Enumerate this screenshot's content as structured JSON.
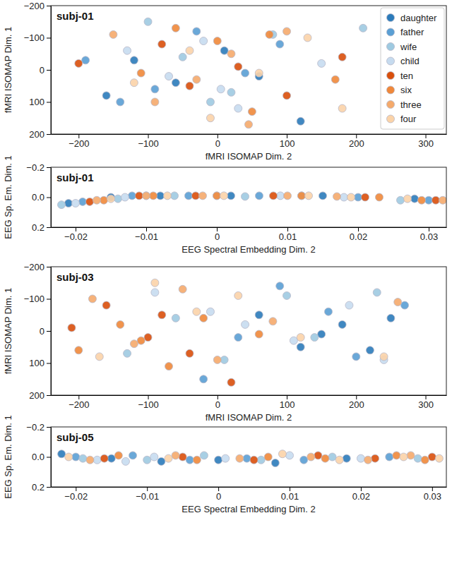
{
  "chart_data": [
    {
      "type": "scatter",
      "title": "subj-01",
      "x_label": "fMRI ISOMAP Dim. 2",
      "y_label": "fMRI ISOMAP Dim. 1",
      "xlim": [
        -240,
        330
      ],
      "ylim": [
        -200,
        200
      ],
      "xticks": [
        {
          "value": -200,
          "label": "−200"
        },
        {
          "value": -100,
          "label": "−100"
        },
        0,
        100,
        200,
        300
      ],
      "yticks": [
        {
          "value": -200,
          "label": "−200"
        },
        {
          "value": -100,
          "label": "−100"
        },
        0,
        100,
        200
      ],
      "legend": "upper right",
      "marker": "circle",
      "series": [
        {
          "name": "daughter",
          "color": "#2b7bba",
          "x": [
            -160,
            -120,
            -60,
            10,
            60,
            120
          ],
          "values": [
            80,
            -30,
            40,
            -60,
            20,
            160
          ]
        },
        {
          "name": "father",
          "color": "#5a9fd4",
          "x": [
            -190,
            -90,
            -30,
            40,
            90,
            -140
          ],
          "values": [
            -30,
            60,
            -120,
            10,
            -80,
            100
          ]
        },
        {
          "name": "wife",
          "color": "#9ecae1",
          "x": [
            -100,
            -50,
            20,
            80,
            -10,
            210
          ],
          "values": [
            -150,
            -40,
            70,
            -110,
            100,
            -130
          ]
        },
        {
          "name": "child",
          "color": "#c6dbef",
          "x": [
            -70,
            -20,
            30,
            -130,
            150,
            5
          ],
          "values": [
            20,
            -90,
            120,
            -60,
            -20,
            60
          ]
        },
        {
          "name": "ten",
          "color": "#d94f0b",
          "x": [
            -200,
            -80,
            -40,
            30,
            180,
            100
          ],
          "values": [
            -20,
            -80,
            50,
            -10,
            -40,
            80
          ]
        },
        {
          "name": "six",
          "color": "#f0883a",
          "x": [
            -110,
            -60,
            0,
            50,
            170,
            75
          ],
          "values": [
            10,
            -130,
            -90,
            130,
            30,
            -110
          ]
        },
        {
          "name": "three",
          "color": "#f5aa6b",
          "x": [
            -150,
            -30,
            20,
            100,
            45,
            -90
          ],
          "values": [
            -110,
            30,
            -50,
            -120,
            170,
            100
          ]
        },
        {
          "name": "four",
          "color": "#fbd3a8",
          "x": [
            -120,
            -40,
            60,
            130,
            180,
            -10
          ],
          "values": [
            40,
            -60,
            10,
            -100,
            120,
            150
          ]
        }
      ]
    },
    {
      "type": "scatter",
      "title": "subj-01",
      "x_label": "EEG Spectral Embedding Dim. 2",
      "y_label": "EEG Sp. Em. Dim. 1",
      "xlim": [
        -0.0235,
        0.0325
      ],
      "ylim": [
        -0.2,
        0.2
      ],
      "xticks": [
        {
          "value": -0.02,
          "label": "−0.02"
        },
        {
          "value": -0.01,
          "label": "−0.01"
        },
        0,
        0.01,
        0.02,
        0.03
      ],
      "yticks": [
        {
          "value": -0.2,
          "label": "−0.2"
        },
        {
          "value": 0,
          "label": "0.0"
        },
        0.2
      ],
      "marker": "circle",
      "series": [
        {
          "color": "#2b7bba",
          "x": [
            -0.021,
            -0.015,
            -0.008,
            0.002,
            0.015,
            0.028
          ],
          "values": [
            0.04,
            0.0,
            -0.01,
            -0.01,
            -0.01,
            0.01
          ]
        },
        {
          "color": "#5a9fd4",
          "x": [
            -0.019,
            -0.012,
            -0.004,
            0.006,
            0.02,
            0.03
          ],
          "values": [
            0.03,
            -0.01,
            -0.01,
            -0.01,
            0.0,
            0.02
          ]
        },
        {
          "color": "#9ecae1",
          "x": [
            -0.022,
            -0.014,
            -0.006,
            0.004,
            0.012,
            0.026
          ],
          "values": [
            0.05,
            0.01,
            -0.01,
            -0.005,
            -0.01,
            0.02
          ]
        },
        {
          "color": "#c6dbef",
          "x": [
            -0.02,
            -0.013,
            -0.01,
            0.0,
            0.009,
            0.018
          ],
          "values": [
            0.04,
            0.0,
            -0.01,
            -0.01,
            -0.01,
            0.0
          ]
        },
        {
          "color": "#d94f0b",
          "x": [
            -0.018,
            -0.011,
            -0.003,
            0.008,
            0.021,
            0.031
          ],
          "values": [
            0.03,
            -0.01,
            -0.01,
            -0.01,
            0.0,
            0.02
          ]
        },
        {
          "color": "#f0883a",
          "x": [
            -0.016,
            -0.009,
            0.0,
            0.012,
            0.023,
            0.029
          ],
          "values": [
            0.02,
            -0.01,
            -0.01,
            -0.01,
            0.0,
            0.02
          ]
        },
        {
          "color": "#f5aa6b",
          "x": [
            -0.017,
            -0.01,
            -0.002,
            0.01,
            0.017,
            0.032
          ],
          "values": [
            0.02,
            -0.01,
            -0.01,
            -0.01,
            -0.005,
            0.02
          ]
        },
        {
          "color": "#fbd3a8",
          "x": [
            -0.015,
            -0.007,
            0.001,
            0.013,
            0.019,
            0.027
          ],
          "values": [
            0.01,
            -0.01,
            -0.01,
            -0.01,
            0.0,
            0.01
          ]
        }
      ]
    },
    {
      "type": "scatter",
      "title": "subj-03",
      "x_label": "fMRI ISOMAP Dim. 2",
      "y_label": "fMRI ISOMAP Dim. 1",
      "xlim": [
        -240,
        330
      ],
      "ylim": [
        -200,
        200
      ],
      "xticks": [
        {
          "value": -200,
          "label": "−200"
        },
        {
          "value": -100,
          "label": "−100"
        },
        0,
        100,
        200,
        300
      ],
      "yticks": [
        {
          "value": -200,
          "label": "−200"
        },
        {
          "value": -100,
          "label": "−100"
        },
        0,
        100,
        200
      ],
      "marker": "circle",
      "series": [
        {
          "color": "#2b7bba",
          "x": [
            60,
            120,
            180,
            220,
            250,
            150
          ],
          "values": [
            -50,
            50,
            -20,
            60,
            -40,
            10
          ]
        },
        {
          "color": "#5a9fd4",
          "x": [
            30,
            90,
            160,
            200,
            270,
            -20
          ],
          "values": [
            20,
            -140,
            -60,
            80,
            -80,
            150
          ]
        },
        {
          "color": "#9ecae1",
          "x": [
            -60,
            10,
            100,
            140,
            230,
            -130
          ],
          "values": [
            -40,
            90,
            -110,
            20,
            -120,
            70
          ]
        },
        {
          "color": "#c6dbef",
          "x": [
            -90,
            40,
            110,
            190,
            240,
            -10
          ],
          "values": [
            -120,
            -20,
            30,
            -80,
            90,
            -60
          ]
        },
        {
          "color": "#d94f0b",
          "x": [
            -210,
            -160,
            -100,
            -40,
            20,
            -80
          ],
          "values": [
            -10,
            -80,
            20,
            70,
            160,
            -50
          ]
        },
        {
          "color": "#f0883a",
          "x": [
            -200,
            -140,
            -70,
            -20,
            60,
            -110
          ],
          "values": [
            60,
            -20,
            110,
            -40,
            10,
            30
          ]
        },
        {
          "color": "#f5aa6b",
          "x": [
            -180,
            -120,
            -50,
            0,
            80,
            260
          ],
          "values": [
            -100,
            40,
            -130,
            90,
            -30,
            -90
          ]
        },
        {
          "color": "#fbd3a8",
          "x": [
            -170,
            -90,
            -30,
            30,
            120,
            240
          ],
          "values": [
            80,
            -150,
            -60,
            -110,
            20,
            80
          ]
        }
      ]
    },
    {
      "type": "scatter",
      "title": "subj-05",
      "x_label": "EEG Spectral Embedding Dim. 2",
      "y_label": "EEG Sp. Em. Dim. 1",
      "xlim": [
        -0.0235,
        0.032
      ],
      "ylim": [
        -0.2,
        0.2
      ],
      "xticks": [
        {
          "value": -0.02,
          "label": "−0.02"
        },
        {
          "value": -0.01,
          "label": "−0.01"
        },
        0,
        0.01,
        0.02,
        0.03
      ],
      "yticks": [
        {
          "value": -0.2,
          "label": "−0.2"
        },
        {
          "value": 0,
          "label": "0.0"
        },
        0.2
      ],
      "marker": "circle",
      "series": [
        {
          "color": "#2b7bba",
          "x": [
            -0.022,
            -0.015,
            -0.008,
            0.0,
            0.008,
            0.018
          ],
          "values": [
            -0.02,
            0.01,
            0.03,
            0.02,
            0.04,
            0.01
          ]
        },
        {
          "color": "#5a9fd4",
          "x": [
            -0.02,
            -0.012,
            -0.004,
            0.004,
            0.012,
            0.024
          ],
          "values": [
            0.0,
            -0.01,
            0.02,
            0.01,
            0.02,
            0.0
          ]
        },
        {
          "color": "#9ecae1",
          "x": [
            -0.019,
            -0.01,
            -0.002,
            0.006,
            0.016,
            0.028
          ],
          "values": [
            0.01,
            0.02,
            -0.01,
            0.02,
            0.0,
            0.01
          ]
        },
        {
          "color": "#c6dbef",
          "x": [
            -0.017,
            -0.009,
            0.001,
            0.01,
            0.02,
            -0.013
          ],
          "values": [
            0.02,
            0.0,
            0.01,
            -0.01,
            0.01,
            0.03
          ]
        },
        {
          "color": "#d94f0b",
          "x": [
            -0.016,
            -0.005,
            0.005,
            0.014,
            0.022,
            0.03
          ],
          "values": [
            0.01,
            0.0,
            0.02,
            -0.01,
            0.01,
            0.0
          ]
        },
        {
          "color": "#f0883a",
          "x": [
            -0.014,
            -0.003,
            0.007,
            0.015,
            0.025,
            0.029
          ],
          "values": [
            -0.01,
            0.02,
            0.0,
            0.01,
            -0.01,
            0.02
          ]
        },
        {
          "color": "#f5aa6b",
          "x": [
            -0.018,
            -0.006,
            0.003,
            0.013,
            0.021,
            0.027
          ],
          "values": [
            0.02,
            -0.01,
            0.01,
            0.0,
            0.02,
            -0.01
          ]
        },
        {
          "color": "#fbd3a8",
          "x": [
            -0.021,
            -0.007,
            0.009,
            0.017,
            0.026,
            0.031
          ],
          "values": [
            0.0,
            0.01,
            -0.02,
            0.02,
            0.0,
            0.01
          ]
        }
      ]
    }
  ]
}
